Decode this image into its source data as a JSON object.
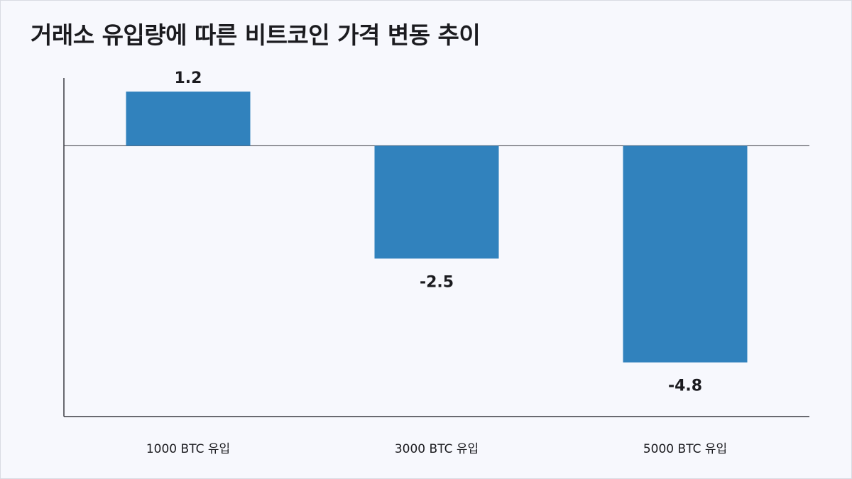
{
  "chart_data": {
    "type": "bar",
    "title": "거래소 유입량에 따른 비트코인 가격 변동 추이",
    "categories": [
      "1000 BTC 유입",
      "3000 BTC 유입",
      "5000 BTC 유입"
    ],
    "values": [
      1.2,
      -2.5,
      -4.8
    ],
    "data_labels": [
      "1.2",
      "-2.5",
      "-4.8"
    ],
    "ylim": [
      -6,
      1.5
    ],
    "xlabel": "",
    "ylabel": "",
    "grid": false,
    "legend": "none",
    "colors": {
      "bar": "#3182bd",
      "axis": "#3a3a42",
      "background": "#f7f8fd",
      "text": "#1b1b1f"
    }
  }
}
